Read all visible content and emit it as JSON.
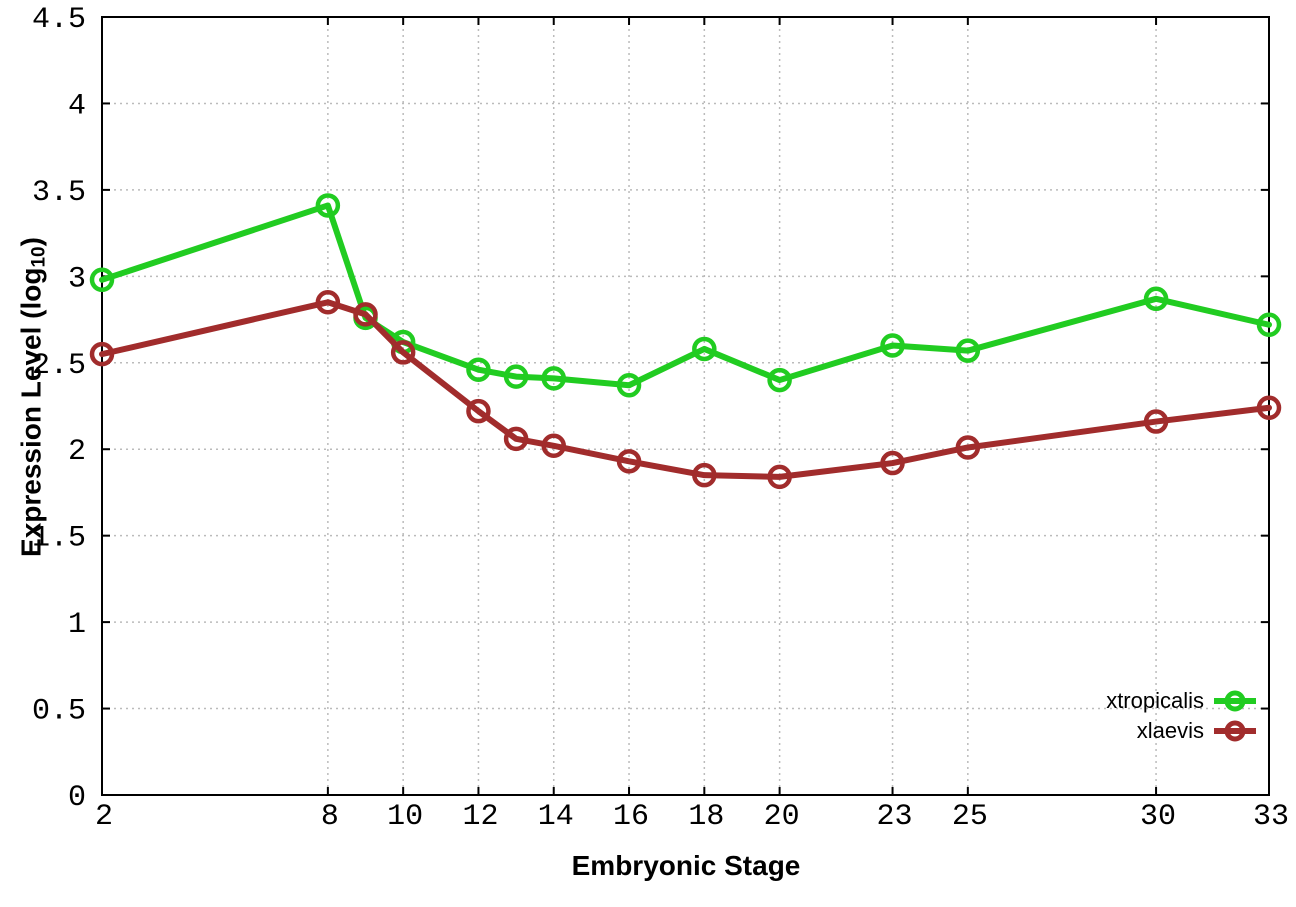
{
  "chart_data": {
    "type": "line",
    "title": "",
    "xlabel": "Embryonic Stage",
    "ylabel": "Expression Level (log10)",
    "ylabel_parts": {
      "pre": "Expression Level (log",
      "sub": "10",
      "post": ")"
    },
    "xlim": [
      2,
      33
    ],
    "ylim": [
      0,
      4.5
    ],
    "grid": true,
    "legend_position": "bottom-right",
    "x": [
      2,
      8,
      9,
      10,
      12,
      13,
      14,
      16,
      18,
      20,
      23,
      25,
      30,
      33
    ],
    "xtick_values": [
      2,
      8,
      10,
      12,
      14,
      16,
      18,
      20,
      23,
      25,
      30,
      33
    ],
    "xtick_labels": [
      "2",
      "8",
      "10",
      "12",
      "14",
      "16",
      "18",
      "20",
      "23",
      "25",
      "30",
      "33"
    ],
    "ytick_values": [
      0,
      0.5,
      1,
      1.5,
      2,
      2.5,
      3,
      3.5,
      4,
      4.5
    ],
    "ytick_labels": [
      "0",
      "0.5",
      "1",
      "1.5",
      "2",
      "2.5",
      "3",
      "3.5",
      "4",
      "4.5"
    ],
    "series": [
      {
        "name": "xtropicalis",
        "color": "#21cc21",
        "values": [
          2.98,
          3.41,
          2.76,
          2.62,
          2.46,
          2.42,
          2.41,
          2.37,
          2.58,
          2.4,
          2.6,
          2.57,
          2.87,
          2.72
        ]
      },
      {
        "name": "xlaevis",
        "color": "#a12c2c",
        "values": [
          2.55,
          2.85,
          2.78,
          2.56,
          2.22,
          2.06,
          2.02,
          1.93,
          1.85,
          1.84,
          1.92,
          2.01,
          2.16,
          2.24
        ]
      }
    ],
    "colors": {
      "grid": "#bbbbbb",
      "axis": "#000000",
      "background": "#ffffff"
    }
  }
}
